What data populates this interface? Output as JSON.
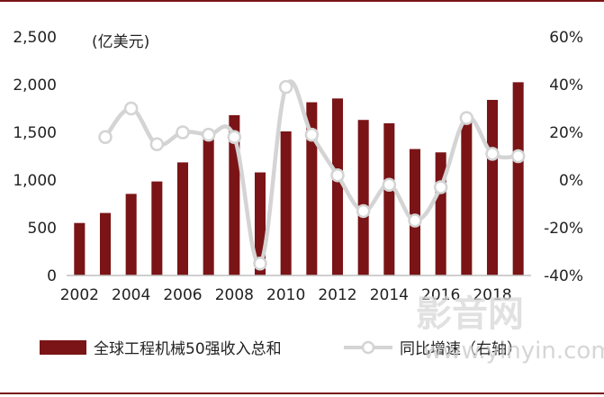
{
  "chart_data": {
    "type": "bar+line",
    "unit_label": "(亿美元)",
    "x": [
      2002,
      2003,
      2004,
      2005,
      2006,
      2007,
      2008,
      2009,
      2010,
      2011,
      2012,
      2013,
      2014,
      2015,
      2016,
      2017,
      2018,
      2019
    ],
    "x_tick_labels": [
      "2002",
      "2004",
      "2006",
      "2008",
      "2010",
      "2012",
      "2014",
      "2016",
      "2018"
    ],
    "y_left_ticks": [
      "2,500",
      "2,000",
      "1,500",
      "1,000",
      "500",
      "0"
    ],
    "y_right_ticks": [
      "60%",
      "40%",
      "20%",
      "0%",
      "-20%",
      "-40%"
    ],
    "ylim_left": [
      0,
      2500
    ],
    "ylim_right": [
      -40,
      60
    ],
    "series": [
      {
        "name": "全球工程机械50强收入总和",
        "type": "bar",
        "axis": "left",
        "color": "#7a1416",
        "values": [
          550,
          655,
          855,
          985,
          1185,
          1475,
          1680,
          1080,
          1510,
          1815,
          1855,
          1630,
          1595,
          1325,
          1290,
          1620,
          1840,
          2025
        ]
      },
      {
        "name": "同比增速（右轴）",
        "type": "line",
        "axis": "right",
        "color": "#d4d4d4",
        "values": [
          null,
          18,
          30,
          15,
          20,
          19,
          18,
          -35,
          39,
          19,
          2,
          -13,
          -2,
          -17,
          -3,
          26,
          11,
          10
        ]
      }
    ],
    "legend": [
      "全球工程机械50强收入总和",
      "同比增速（右轴）"
    ],
    "legend_position": "bottom",
    "grid": false
  },
  "watermark": {
    "text": "影音网",
    "url": "www.yinyin.com"
  }
}
